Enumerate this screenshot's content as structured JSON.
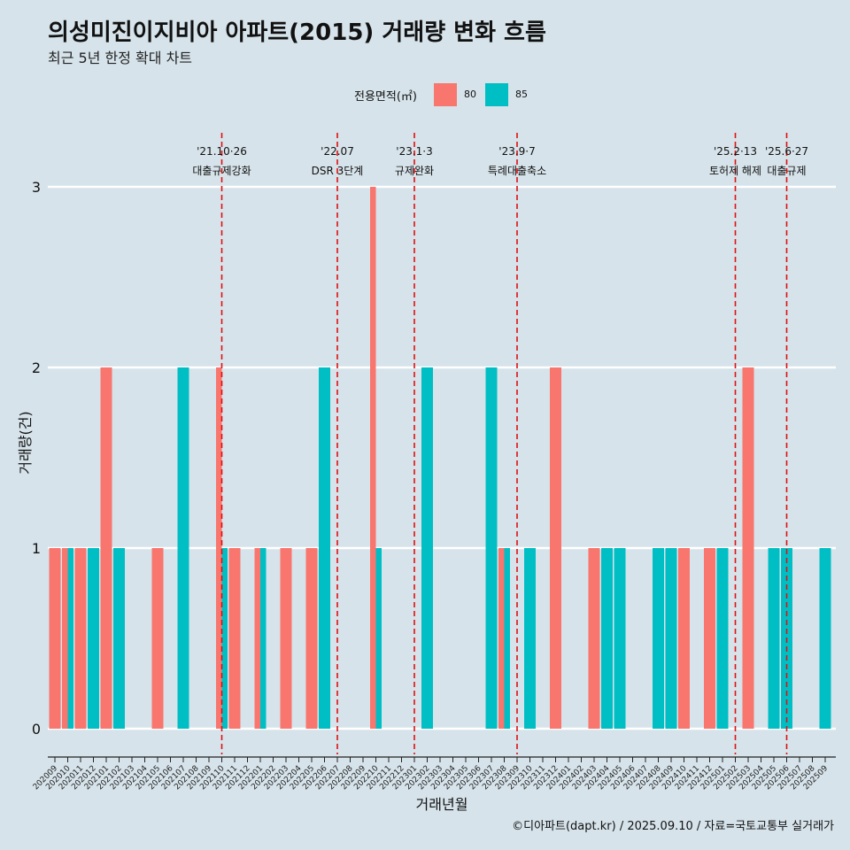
{
  "title": "의성미진이지비아 아파트(2015) 거래량 변화 흐름",
  "subtitle": "최근 5년 한정 확대 차트",
  "legend": {
    "title": "전용면적(㎡)",
    "items": [
      {
        "label": "80",
        "color": "#F8766D"
      },
      {
        "label": "85",
        "color": "#00BFC4"
      }
    ]
  },
  "caption": "©디아파트(dapt.kr) / 2025.09.10 / 자료=국토교통부 실거래가",
  "chart_data": {
    "type": "bar",
    "xlabel": "거래년월",
    "ylabel": "거래량(건)",
    "ylim": [
      0,
      3
    ],
    "yticks": [
      0,
      1,
      2,
      3
    ],
    "grid": true,
    "legend_position": "top",
    "categories": [
      "202009",
      "202010",
      "202011",
      "202012",
      "202101",
      "202102",
      "202103",
      "202104",
      "202105",
      "202106",
      "202107",
      "202108",
      "202109",
      "202110",
      "202111",
      "202112",
      "202201",
      "202202",
      "202203",
      "202204",
      "202205",
      "202206",
      "202207",
      "202208",
      "202209",
      "202210",
      "202211",
      "202212",
      "202301",
      "202302",
      "202303",
      "202304",
      "202305",
      "202306",
      "202307",
      "202308",
      "202309",
      "202310",
      "202311",
      "202312",
      "202401",
      "202402",
      "202403",
      "202404",
      "202405",
      "202406",
      "202407",
      "202408",
      "202409",
      "202410",
      "202411",
      "202412",
      "202501",
      "202502",
      "202503",
      "202504",
      "202505",
      "202506",
      "202507",
      "202508",
      "202509"
    ],
    "series": [
      {
        "name": "80",
        "color": "#F8766D",
        "values": [
          1,
          1,
          1,
          0,
          2,
          0,
          0,
          0,
          1,
          0,
          0,
          0,
          0,
          2,
          1,
          0,
          1,
          0,
          1,
          0,
          1,
          0,
          0,
          0,
          0,
          3,
          0,
          0,
          0,
          0,
          0,
          0,
          0,
          0,
          0,
          1,
          0,
          0,
          0,
          2,
          0,
          0,
          1,
          0,
          0,
          0,
          0,
          0,
          0,
          1,
          0,
          1,
          0,
          0,
          2,
          0,
          0,
          0,
          0,
          0,
          0
        ]
      },
      {
        "name": "85",
        "color": "#00BFC4",
        "values": [
          0,
          1,
          0,
          1,
          0,
          1,
          0,
          0,
          0,
          0,
          2,
          0,
          0,
          1,
          0,
          0,
          1,
          0,
          0,
          0,
          0,
          2,
          0,
          0,
          0,
          1,
          0,
          0,
          0,
          2,
          0,
          0,
          0,
          0,
          2,
          1,
          0,
          1,
          0,
          0,
          0,
          0,
          0,
          1,
          1,
          0,
          0,
          1,
          1,
          0,
          0,
          0,
          1,
          0,
          0,
          0,
          1,
          1,
          0,
          0,
          1
        ]
      }
    ],
    "annotations": [
      {
        "category": "202110",
        "date": "'21.10·26",
        "label": "대출규제강화"
      },
      {
        "category": "202207",
        "date": "'22.07",
        "label": "DSR 3단계"
      },
      {
        "category": "202301",
        "date": "'23.1·3",
        "label": "규제완화"
      },
      {
        "category": "202309",
        "date": "'23.9·7",
        "label": "특례대출축소"
      },
      {
        "category": "202502",
        "date": "'25.2·13",
        "label": "토허제 해제"
      },
      {
        "category": "202506",
        "date": "'25.6·27",
        "label": "대출규제"
      }
    ]
  }
}
